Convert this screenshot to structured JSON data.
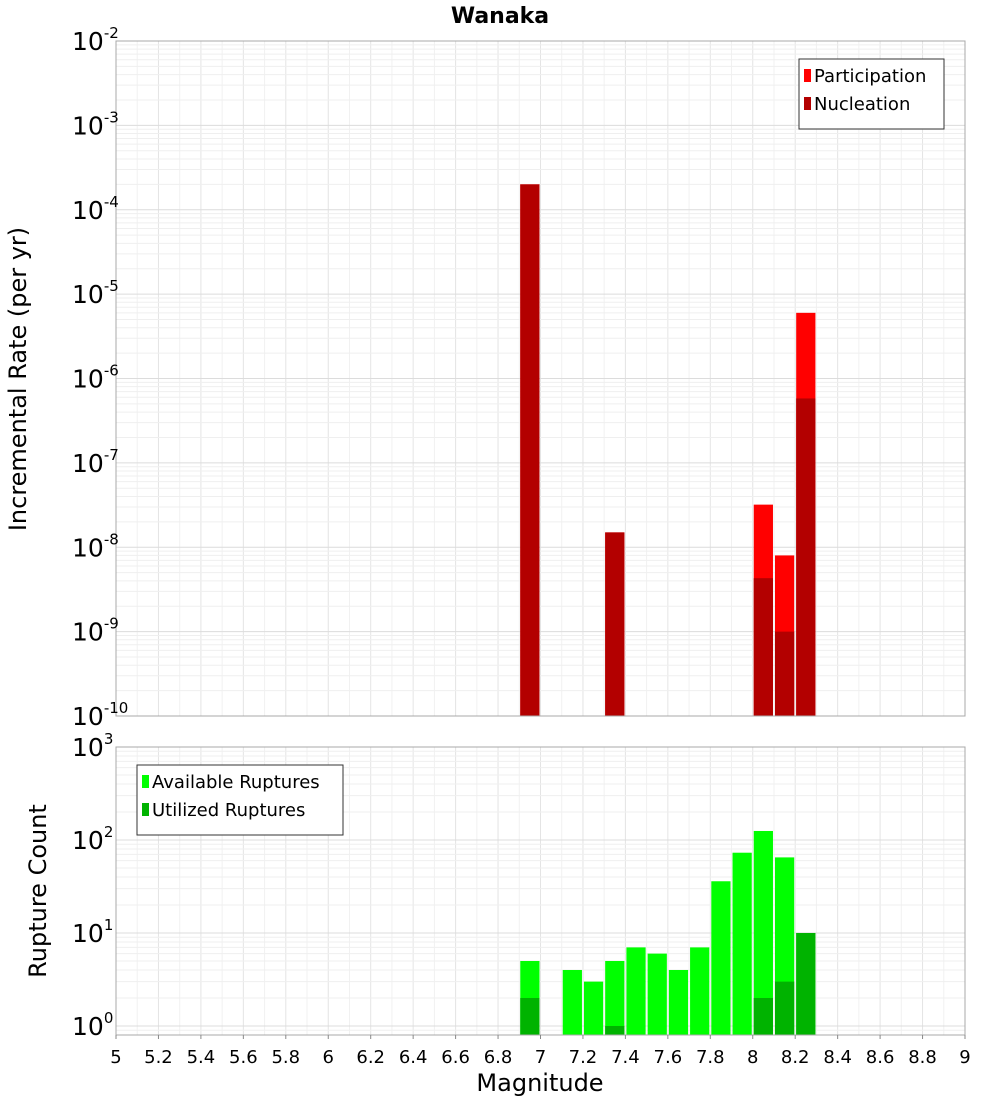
{
  "chart_data": [
    {
      "id": "top",
      "type": "bar",
      "title": "Wanaka",
      "ylabel": "Incremental Rate (per yr)",
      "yscale": "log",
      "ylim": [
        1e-10,
        0.01
      ],
      "xlim": [
        5,
        9
      ],
      "bar_width": 0.1,
      "grid": true,
      "legend_position": "top-right",
      "yticks": [
        {
          "base": "10",
          "exp": "-10",
          "value": 1e-10
        },
        {
          "base": "10",
          "exp": "-9",
          "value": 1e-09
        },
        {
          "base": "10",
          "exp": "-8",
          "value": 1e-08
        },
        {
          "base": "10",
          "exp": "-7",
          "value": 1e-07
        },
        {
          "base": "10",
          "exp": "-6",
          "value": 1e-06
        },
        {
          "base": "10",
          "exp": "-5",
          "value": 1e-05
        },
        {
          "base": "10",
          "exp": "-4",
          "value": 0.0001
        },
        {
          "base": "10",
          "exp": "-3",
          "value": 0.001
        },
        {
          "base": "10",
          "exp": "-2",
          "value": 0.01
        }
      ],
      "series": [
        {
          "name": "Participation",
          "color": "#ff0000",
          "points": [
            {
              "x": 6.95,
              "y": 0.0002
            },
            {
              "x": 7.35,
              "y": 1.5e-08
            },
            {
              "x": 8.05,
              "y": 3.2e-08
            },
            {
              "x": 8.15,
              "y": 8e-09
            },
            {
              "x": 8.25,
              "y": 6e-06
            }
          ]
        },
        {
          "name": "Nucleation",
          "color": "#b30000",
          "points": [
            {
              "x": 6.95,
              "y": 0.0002
            },
            {
              "x": 7.35,
              "y": 1.5e-08
            },
            {
              "x": 8.05,
              "y": 4.3e-09
            },
            {
              "x": 8.15,
              "y": 1e-09
            },
            {
              "x": 8.25,
              "y": 5.8e-07
            }
          ]
        }
      ]
    },
    {
      "id": "bottom",
      "type": "bar",
      "xlabel": "Magnitude",
      "ylabel": "Rupture Count",
      "yscale": "log",
      "ylim": [
        0.8,
        1000
      ],
      "xlim": [
        5,
        9
      ],
      "bar_width": 0.1,
      "grid": true,
      "legend_position": "top-left",
      "yticks": [
        {
          "base": "10",
          "exp": "0",
          "value": 1
        },
        {
          "base": "10",
          "exp": "1",
          "value": 10
        },
        {
          "base": "10",
          "exp": "2",
          "value": 100
        },
        {
          "base": "10",
          "exp": "3",
          "value": 1000
        }
      ],
      "xticks": [
        "5",
        "5.2",
        "5.4",
        "5.6",
        "5.8",
        "6",
        "6.2",
        "6.4",
        "6.6",
        "6.8",
        "7",
        "7.2",
        "7.4",
        "7.6",
        "7.8",
        "8",
        "8.2",
        "8.4",
        "8.6",
        "8.8",
        "9"
      ],
      "series": [
        {
          "name": "Available Ruptures",
          "color": "#00ff00",
          "points": [
            {
              "x": 6.95,
              "y": 5
            },
            {
              "x": 7.15,
              "y": 4
            },
            {
              "x": 7.25,
              "y": 3
            },
            {
              "x": 7.35,
              "y": 5
            },
            {
              "x": 7.45,
              "y": 7
            },
            {
              "x": 7.55,
              "y": 6
            },
            {
              "x": 7.65,
              "y": 4
            },
            {
              "x": 7.75,
              "y": 7
            },
            {
              "x": 7.85,
              "y": 36
            },
            {
              "x": 7.95,
              "y": 73
            },
            {
              "x": 8.05,
              "y": 125
            },
            {
              "x": 8.15,
              "y": 65
            },
            {
              "x": 8.25,
              "y": 10
            }
          ]
        },
        {
          "name": "Utilized Ruptures",
          "color": "#00b300",
          "points": [
            {
              "x": 6.95,
              "y": 2
            },
            {
              "x": 7.35,
              "y": 1
            },
            {
              "x": 8.05,
              "y": 2
            },
            {
              "x": 8.15,
              "y": 3
            },
            {
              "x": 8.25,
              "y": 10
            }
          ]
        }
      ]
    }
  ]
}
